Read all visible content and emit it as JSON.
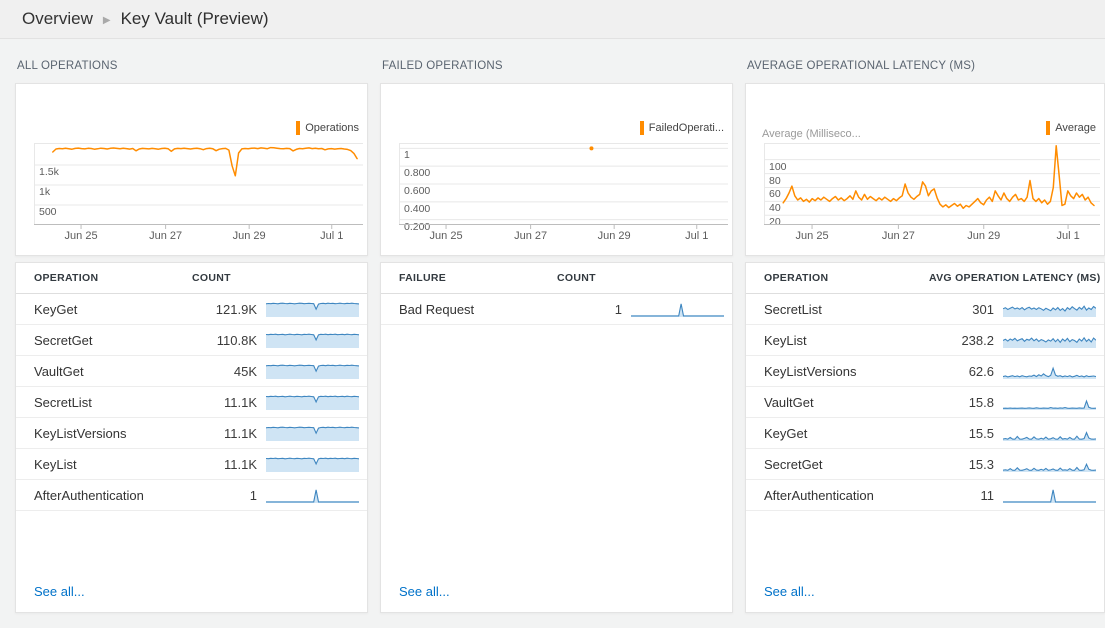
{
  "breadcrumb": {
    "section": "Overview",
    "separator": "▶",
    "page": "Key Vault (Preview)"
  },
  "colors": {
    "accent_orange": "#ff8c00",
    "spark_line": "#3e86c0",
    "spark_fill": "#cfe4f4",
    "link_blue": "#0072c9",
    "gridline": "#e8e8e8",
    "axis_line": "#bdbdbd"
  },
  "panels": [
    {
      "title": "ALL OPERATIONS",
      "legend": "Operations",
      "axis_title": "",
      "table": {
        "headers": [
          "OPERATION",
          "COUNT"
        ],
        "rows": [
          {
            "label": "KeyGet",
            "value": "121.9K",
            "spark": "count_full_a"
          },
          {
            "label": "SecretGet",
            "value": "110.8K",
            "spark": "count_full_b"
          },
          {
            "label": "VaultGet",
            "value": "45K",
            "spark": "count_full_a"
          },
          {
            "label": "SecretList",
            "value": "11.1K",
            "spark": "count_full_b"
          },
          {
            "label": "KeyListVersions",
            "value": "11.1K",
            "spark": "count_full_a"
          },
          {
            "label": "KeyList",
            "value": "11.1K",
            "spark": "count_full_b"
          },
          {
            "label": "AfterAuthentication",
            "value": "1",
            "spark": "single_spike"
          }
        ],
        "see_all": "See all..."
      }
    },
    {
      "title": "FAILED OPERATIONS",
      "legend": "FailedOperati...",
      "axis_title": "",
      "table": {
        "headers": [
          "FAILURE",
          "COUNT"
        ],
        "rows": [
          {
            "label": "Bad Request",
            "value": "1",
            "spark": "single_spike"
          }
        ],
        "see_all": "See all..."
      }
    },
    {
      "title": "AVERAGE OPERATIONAL LATENCY (MS)",
      "legend": "Average",
      "axis_title": "Average (Milliseco...",
      "table": {
        "headers": [
          "OPERATION",
          "AVG OPERATION LATENCY (MS)"
        ],
        "rows": [
          {
            "label": "SecretList",
            "value": "301",
            "spark": "latency_jagged_a"
          },
          {
            "label": "KeyList",
            "value": "238.2",
            "spark": "latency_jagged_b"
          },
          {
            "label": "KeyListVersions",
            "value": "62.6",
            "spark": "mid_spike"
          },
          {
            "label": "VaultGet",
            "value": "15.8",
            "spark": "flat_right_spike"
          },
          {
            "label": "KeyGet",
            "value": "15.5",
            "spark": "bumps_right_spike_a"
          },
          {
            "label": "SecretGet",
            "value": "15.3",
            "spark": "bumps_right_spike_b"
          },
          {
            "label": "AfterAuthentication",
            "value": "11",
            "spark": "single_spike"
          }
        ],
        "see_all": "See all..."
      }
    }
  ],
  "chart_data": [
    {
      "type": "line",
      "title": "ALL OPERATIONS",
      "series_name": "Operations",
      "ymin": 0,
      "ymax": 2050,
      "yticks": [
        {
          "v": 1500,
          "label": "1.5k"
        },
        {
          "v": 1000,
          "label": "1k"
        },
        {
          "v": 500,
          "label": "500"
        }
      ],
      "xticks": [
        "Jun 25",
        "Jun 27",
        "Jun 29",
        "Jul 1"
      ],
      "series": [
        1825,
        1900,
        1912,
        1905,
        1918,
        1908,
        1896,
        1915,
        1922,
        1910,
        1902,
        1918,
        1912,
        1895,
        1906,
        1919,
        1913,
        1899,
        1917,
        1924,
        1914,
        1905,
        1917,
        1909,
        1897,
        1913,
        1855,
        1900,
        1916,
        1911,
        1903,
        1914,
        1907,
        1894,
        1913,
        1921,
        1908,
        1842,
        1902,
        1914,
        1909,
        1917,
        1911,
        1901,
        1912,
        1920,
        1907,
        1882,
        1909,
        1917,
        1904,
        1858,
        1896,
        1911,
        1916,
        1872,
        1480,
        1230,
        1800,
        1902,
        1913,
        1907,
        1917,
        1923,
        1911,
        1928,
        1917,
        1907,
        1936,
        1930,
        1919,
        1911,
        1904,
        1916,
        1909,
        1852,
        1889,
        1913,
        1907,
        1918,
        1927,
        1911,
        1918,
        1906,
        1913,
        1879,
        1903,
        1911,
        1897,
        1906,
        1913,
        1901,
        1889,
        1860,
        1790,
        1660
      ]
    },
    {
      "type": "scatter",
      "title": "FAILED OPERATIONS",
      "series_name": "FailedOperations",
      "ymin": 0.14,
      "ymax": 1.06,
      "yticks": [
        {
          "v": 1,
          "label": "1"
        },
        {
          "v": 0.8,
          "label": "0.800"
        },
        {
          "v": 0.6,
          "label": "0.600"
        },
        {
          "v": 0.4,
          "label": "0.400"
        },
        {
          "v": 0.2,
          "label": "0.200"
        }
      ],
      "xticks": [
        "Jun 25",
        "Jun 27",
        "Jun 29",
        "Jul 1"
      ],
      "point": {
        "x": 0.585,
        "y": 1
      }
    },
    {
      "type": "line",
      "title": "AVERAGE OPERATIONAL LATENCY (MS)",
      "series_name": "Average (Milliseconds)",
      "ymin": 6,
      "ymax": 124,
      "yticks": [
        {
          "v": 100,
          "label": "100"
        },
        {
          "v": 80,
          "label": "80"
        },
        {
          "v": 60,
          "label": "60"
        },
        {
          "v": 40,
          "label": "40"
        },
        {
          "v": 20,
          "label": "20"
        }
      ],
      "xticks": [
        "Jun 25",
        "Jun 27",
        "Jun 29",
        "Jul 1"
      ],
      "series": [
        38,
        44,
        52,
        62,
        48,
        42,
        45,
        40,
        43,
        39,
        44,
        41,
        45,
        42,
        46,
        43,
        40,
        44,
        47,
        42,
        45,
        41,
        44,
        48,
        43,
        55,
        46,
        42,
        50,
        43,
        47,
        44,
        41,
        45,
        42,
        46,
        43,
        40,
        44,
        41,
        45,
        48,
        65,
        52,
        46,
        43,
        47,
        50,
        68,
        62,
        48,
        55,
        58,
        45,
        36,
        32,
        35,
        31,
        34,
        37,
        33,
        36,
        30,
        34,
        32,
        36,
        40,
        44,
        38,
        35,
        42,
        46,
        40,
        55,
        48,
        42,
        52,
        44,
        40,
        46,
        50,
        42,
        44,
        40,
        46,
        70,
        44,
        40,
        44,
        38,
        42,
        36,
        40,
        60,
        120,
        78,
        34,
        36,
        55,
        48,
        44,
        52,
        46,
        50,
        42,
        46,
        38,
        34
      ]
    }
  ],
  "spark_patterns": {
    "count_full_a": [
      88,
      90,
      89,
      91,
      90,
      88,
      91,
      92,
      90,
      89,
      91,
      90,
      88,
      90,
      92,
      91,
      89,
      90,
      91,
      90,
      89,
      52,
      86,
      90,
      91,
      89,
      92,
      90,
      91,
      89,
      90,
      92,
      90,
      89,
      91,
      90,
      92,
      90,
      89,
      87
    ],
    "count_full_b": [
      90,
      89,
      91,
      90,
      92,
      89,
      90,
      91,
      88,
      90,
      92,
      90,
      89,
      91,
      90,
      88,
      91,
      90,
      92,
      90,
      88,
      54,
      88,
      91,
      90,
      92,
      89,
      91,
      90,
      92,
      89,
      90,
      91,
      89,
      92,
      90,
      89,
      91,
      90,
      88
    ],
    "single_spike": [
      7,
      7,
      7,
      7,
      7,
      7,
      7,
      7,
      7,
      7,
      7,
      7,
      7,
      7,
      7,
      7,
      7,
      7,
      7,
      7,
      7,
      88,
      7,
      7,
      7,
      7,
      7,
      7,
      7,
      7,
      7,
      7,
      7,
      7,
      7,
      7,
      7,
      7,
      7,
      7
    ],
    "latency_jagged_a": [
      55,
      62,
      50,
      58,
      66,
      54,
      60,
      52,
      63,
      48,
      58,
      65,
      53,
      60,
      50,
      62,
      55,
      45,
      58,
      50,
      42,
      60,
      48,
      63,
      44,
      56,
      40,
      62,
      50,
      68,
      56,
      46,
      64,
      52,
      72,
      46,
      60,
      50,
      70,
      58
    ],
    "latency_jagged_b": [
      50,
      58,
      46,
      60,
      52,
      64,
      48,
      56,
      62,
      45,
      58,
      52,
      66,
      48,
      60,
      44,
      56,
      50,
      40,
      54,
      46,
      62,
      42,
      58,
      38,
      60,
      46,
      64,
      42,
      56,
      50,
      38,
      60,
      46,
      68,
      44,
      58,
      40,
      66,
      52
    ],
    "mid_spike": [
      16,
      20,
      14,
      18,
      22,
      16,
      20,
      15,
      22,
      17,
      15,
      20,
      18,
      26,
      16,
      28,
      20,
      34,
      22,
      16,
      24,
      72,
      26,
      18,
      22,
      15,
      20,
      16,
      22,
      14,
      18,
      24,
      16,
      20,
      14,
      22,
      16,
      18,
      20,
      16
    ],
    "flat_right_spike": [
      11,
      12,
      11,
      13,
      11,
      12,
      11,
      12,
      13,
      11,
      12,
      14,
      12,
      11,
      15,
      12,
      11,
      13,
      12,
      11,
      16,
      12,
      13,
      11,
      14,
      12,
      16,
      12,
      11,
      13,
      12,
      11,
      14,
      12,
      13,
      60,
      18,
      12,
      11,
      12
    ],
    "bumps_right_spike_a": [
      13,
      16,
      12,
      24,
      13,
      12,
      30,
      13,
      12,
      17,
      24,
      13,
      12,
      27,
      14,
      12,
      19,
      13,
      26,
      12,
      15,
      22,
      13,
      12,
      28,
      13,
      16,
      12,
      24,
      13,
      12,
      32,
      13,
      12,
      16,
      56,
      20,
      13,
      12,
      14
    ],
    "bumps_right_spike_b": [
      12,
      15,
      11,
      22,
      12,
      11,
      28,
      12,
      11,
      16,
      22,
      12,
      11,
      25,
      13,
      11,
      18,
      12,
      24,
      11,
      14,
      20,
      12,
      11,
      26,
      12,
      15,
      11,
      22,
      12,
      11,
      30,
      12,
      11,
      15,
      52,
      18,
      12,
      11,
      13
    ]
  }
}
